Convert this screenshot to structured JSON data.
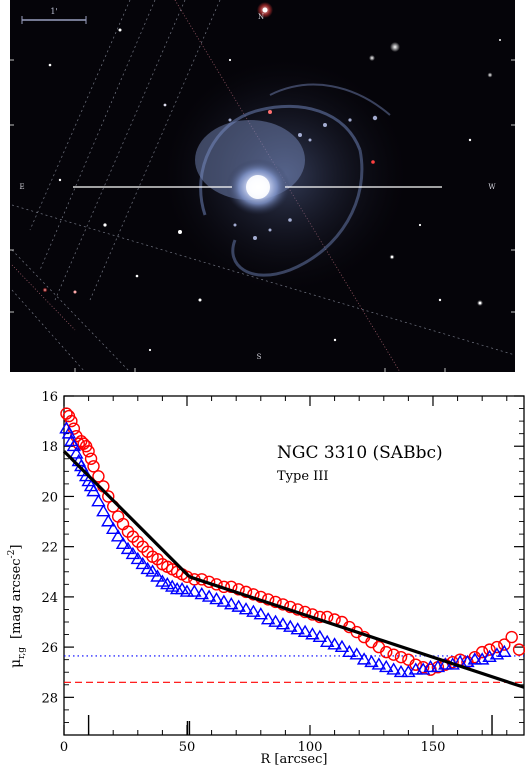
{
  "image_panel": {
    "scale_bar_label": "1'",
    "compass_labels": {
      "top": "N",
      "left": "E",
      "right": "W",
      "bottom": "S"
    },
    "colors": {
      "sky": "#050409",
      "grid_lines": "#8a8fa0",
      "core": "#dfe6ff",
      "arms": "#8aa0d8"
    }
  },
  "chart_data": {
    "type": "scatter",
    "title": "NGC 3310 (SABbc)",
    "subtitle": "Type III",
    "xlabel": "R [arcsec]",
    "ylabel": "μr,g [mag arcsec-2]",
    "ylabel_main": "μ",
    "ylabel_sub": "r,g",
    "ylabel_unit": "[mag arcsec",
    "ylabel_exp": "-2",
    "ylabel_close": "]",
    "xlim": [
      0,
      187
    ],
    "ylim": [
      16,
      29.5
    ],
    "y_inverted": true,
    "x_ticks": [
      0,
      50,
      100,
      150
    ],
    "y_ticks": [
      16,
      18,
      20,
      22,
      24,
      26,
      28
    ],
    "breaks": [
      10,
      51,
      174
    ],
    "grid": false,
    "series": [
      {
        "marker": "circle",
        "color": "#ff0000",
        "x": [
          1,
          2,
          3,
          4,
          5,
          6,
          7,
          8,
          9,
          10,
          11,
          12,
          14,
          16,
          18,
          20,
          22,
          24,
          26,
          28,
          30,
          32,
          34,
          36,
          38,
          40,
          42,
          44,
          46,
          48,
          50,
          53,
          56,
          59,
          62,
          65,
          68,
          71,
          74,
          77,
          80,
          83,
          86,
          89,
          92,
          95,
          98,
          101,
          104,
          107,
          110,
          113,
          116,
          119,
          122,
          125,
          128,
          131,
          134,
          137,
          140,
          143,
          146,
          149,
          152,
          155,
          158,
          161,
          164,
          167,
          170,
          173,
          176,
          179,
          182,
          185
        ],
        "y": [
          16.7,
          16.8,
          17.0,
          17.3,
          17.6,
          17.9,
          17.8,
          17.9,
          18.0,
          18.2,
          18.5,
          18.8,
          19.2,
          19.6,
          20.0,
          20.4,
          20.8,
          21.1,
          21.4,
          21.6,
          21.8,
          22.0,
          22.2,
          22.4,
          22.5,
          22.7,
          22.8,
          22.9,
          23.0,
          23.1,
          23.2,
          23.3,
          23.3,
          23.4,
          23.5,
          23.6,
          23.6,
          23.7,
          23.8,
          23.9,
          24.0,
          24.1,
          24.2,
          24.3,
          24.4,
          24.5,
          24.6,
          24.7,
          24.8,
          24.8,
          24.9,
          25.0,
          25.2,
          25.4,
          25.6,
          25.8,
          26.0,
          26.2,
          26.3,
          26.4,
          26.5,
          26.7,
          26.8,
          26.9,
          26.8,
          26.7,
          26.6,
          26.5,
          26.6,
          26.4,
          26.2,
          26.1,
          26.0,
          25.9,
          25.6,
          26.1
        ]
      },
      {
        "marker": "triangle",
        "color": "#0000ff",
        "x": [
          1,
          2,
          3,
          4,
          5,
          6,
          7,
          8,
          9,
          10,
          11,
          12,
          14,
          16,
          18,
          20,
          22,
          24,
          26,
          28,
          30,
          32,
          34,
          36,
          38,
          40,
          42,
          44,
          46,
          48,
          50,
          53,
          56,
          59,
          62,
          65,
          68,
          71,
          74,
          77,
          80,
          83,
          86,
          89,
          92,
          95,
          98,
          101,
          104,
          107,
          110,
          113,
          116,
          119,
          122,
          125,
          128,
          131,
          134,
          137,
          140,
          143,
          146,
          149,
          152,
          155,
          158,
          161,
          164,
          167,
          170,
          173,
          176,
          179
        ],
        "y": [
          17.3,
          17.5,
          17.8,
          18.0,
          18.3,
          18.6,
          18.8,
          19.0,
          19.2,
          19.4,
          19.6,
          19.8,
          20.2,
          20.6,
          21.0,
          21.3,
          21.6,
          21.9,
          22.1,
          22.3,
          22.5,
          22.7,
          22.9,
          23.0,
          23.2,
          23.4,
          23.5,
          23.6,
          23.7,
          23.7,
          23.8,
          23.8,
          23.9,
          24.0,
          24.1,
          24.2,
          24.3,
          24.4,
          24.5,
          24.6,
          24.7,
          24.9,
          25.0,
          25.1,
          25.2,
          25.3,
          25.4,
          25.5,
          25.6,
          25.8,
          25.9,
          26.0,
          26.2,
          26.3,
          26.5,
          26.6,
          26.7,
          26.8,
          26.9,
          27.0,
          27.0,
          26.9,
          26.9,
          26.8,
          26.8,
          26.7,
          26.7,
          26.6,
          26.6,
          26.5,
          26.5,
          26.4,
          26.3,
          26.2
        ]
      }
    ],
    "fit_segments": [
      {
        "x": [
          0,
          51
        ],
        "y": [
          18.2,
          23.2
        ]
      },
      {
        "x": [
          51,
          187
        ],
        "y": [
          23.2,
          27.6
        ]
      }
    ],
    "reference_lines": [
      {
        "y": 26.35,
        "style": "dotted",
        "color": "#0000ff"
      },
      {
        "y": 27.4,
        "style": "dashed",
        "color": "#ff0000"
      }
    ]
  }
}
